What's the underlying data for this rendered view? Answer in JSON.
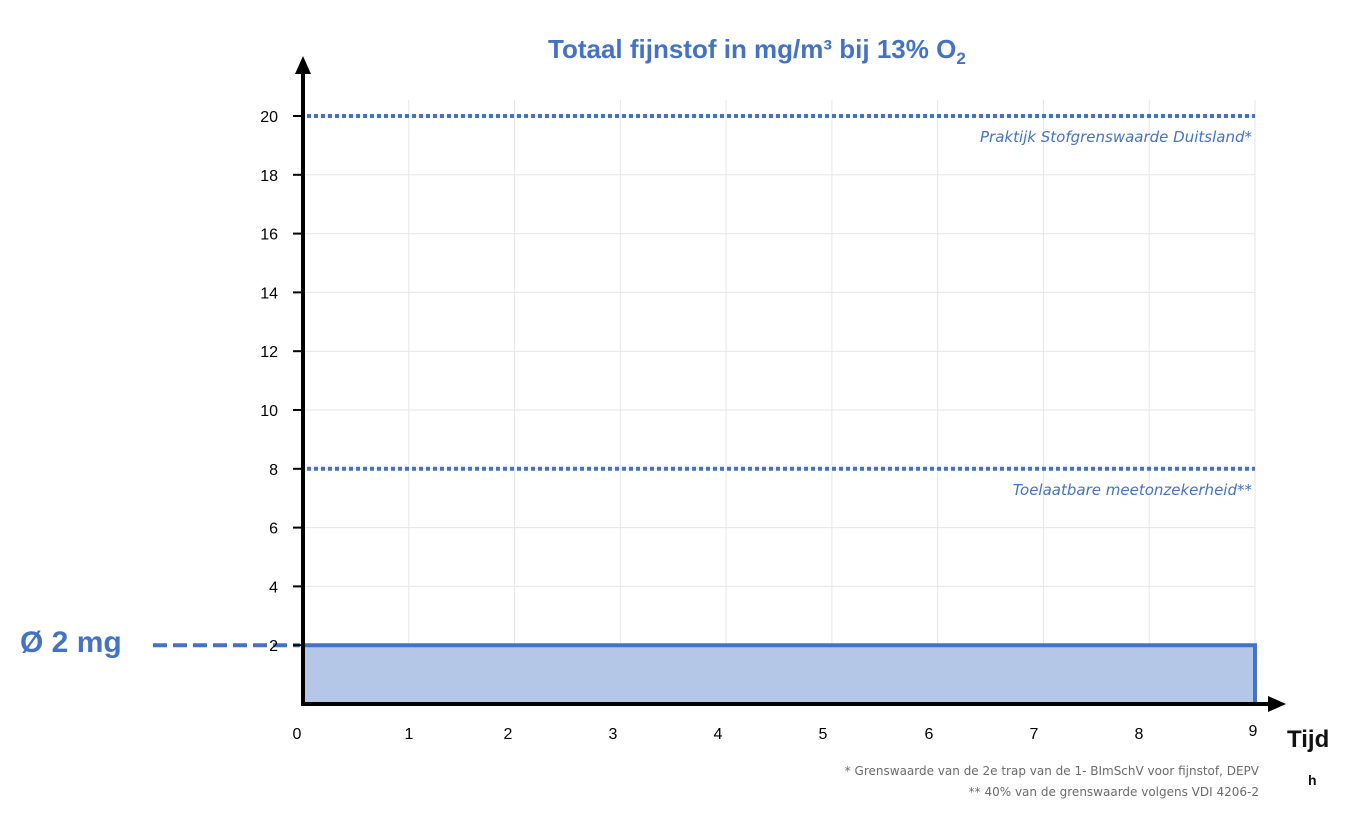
{
  "chart_data": {
    "type": "area",
    "title_main": "Totaal fijnstof in mg/m³ bij 13% O",
    "title_subscript": "2",
    "xlabel": "Tijd",
    "xunit": "h",
    "x_ticks": [
      0,
      1,
      2,
      3,
      4,
      5,
      6,
      7,
      8,
      9
    ],
    "y_ticks": [
      2,
      4,
      6,
      8,
      10,
      12,
      14,
      16,
      18,
      20
    ],
    "xlim": [
      0,
      9
    ],
    "ylim": [
      0,
      20
    ],
    "grid": true,
    "series": [
      {
        "x": [
          0,
          9
        ],
        "values": [
          2,
          2
        ],
        "color": "#4472C4",
        "fill": "#B4C7E7"
      }
    ],
    "reference_lines": [
      {
        "value": 20,
        "label": "Praktijk Stofgrenswaarde Duitsland*",
        "color": "#4472C4"
      },
      {
        "value": 8,
        "label": "Toelaatbare meetonzekerheid**",
        "color": "#4472C4"
      }
    ],
    "average_marker": {
      "value": 2,
      "label": "Ø 2 mg",
      "color": "#4472C4"
    },
    "footnotes": [
      "* Grenswaarde van de 2e trap van de 1- BImSchV voor fijnstof, DEPV",
      "**  40% van de grenswaarde volgens VDI 4206-2"
    ]
  }
}
